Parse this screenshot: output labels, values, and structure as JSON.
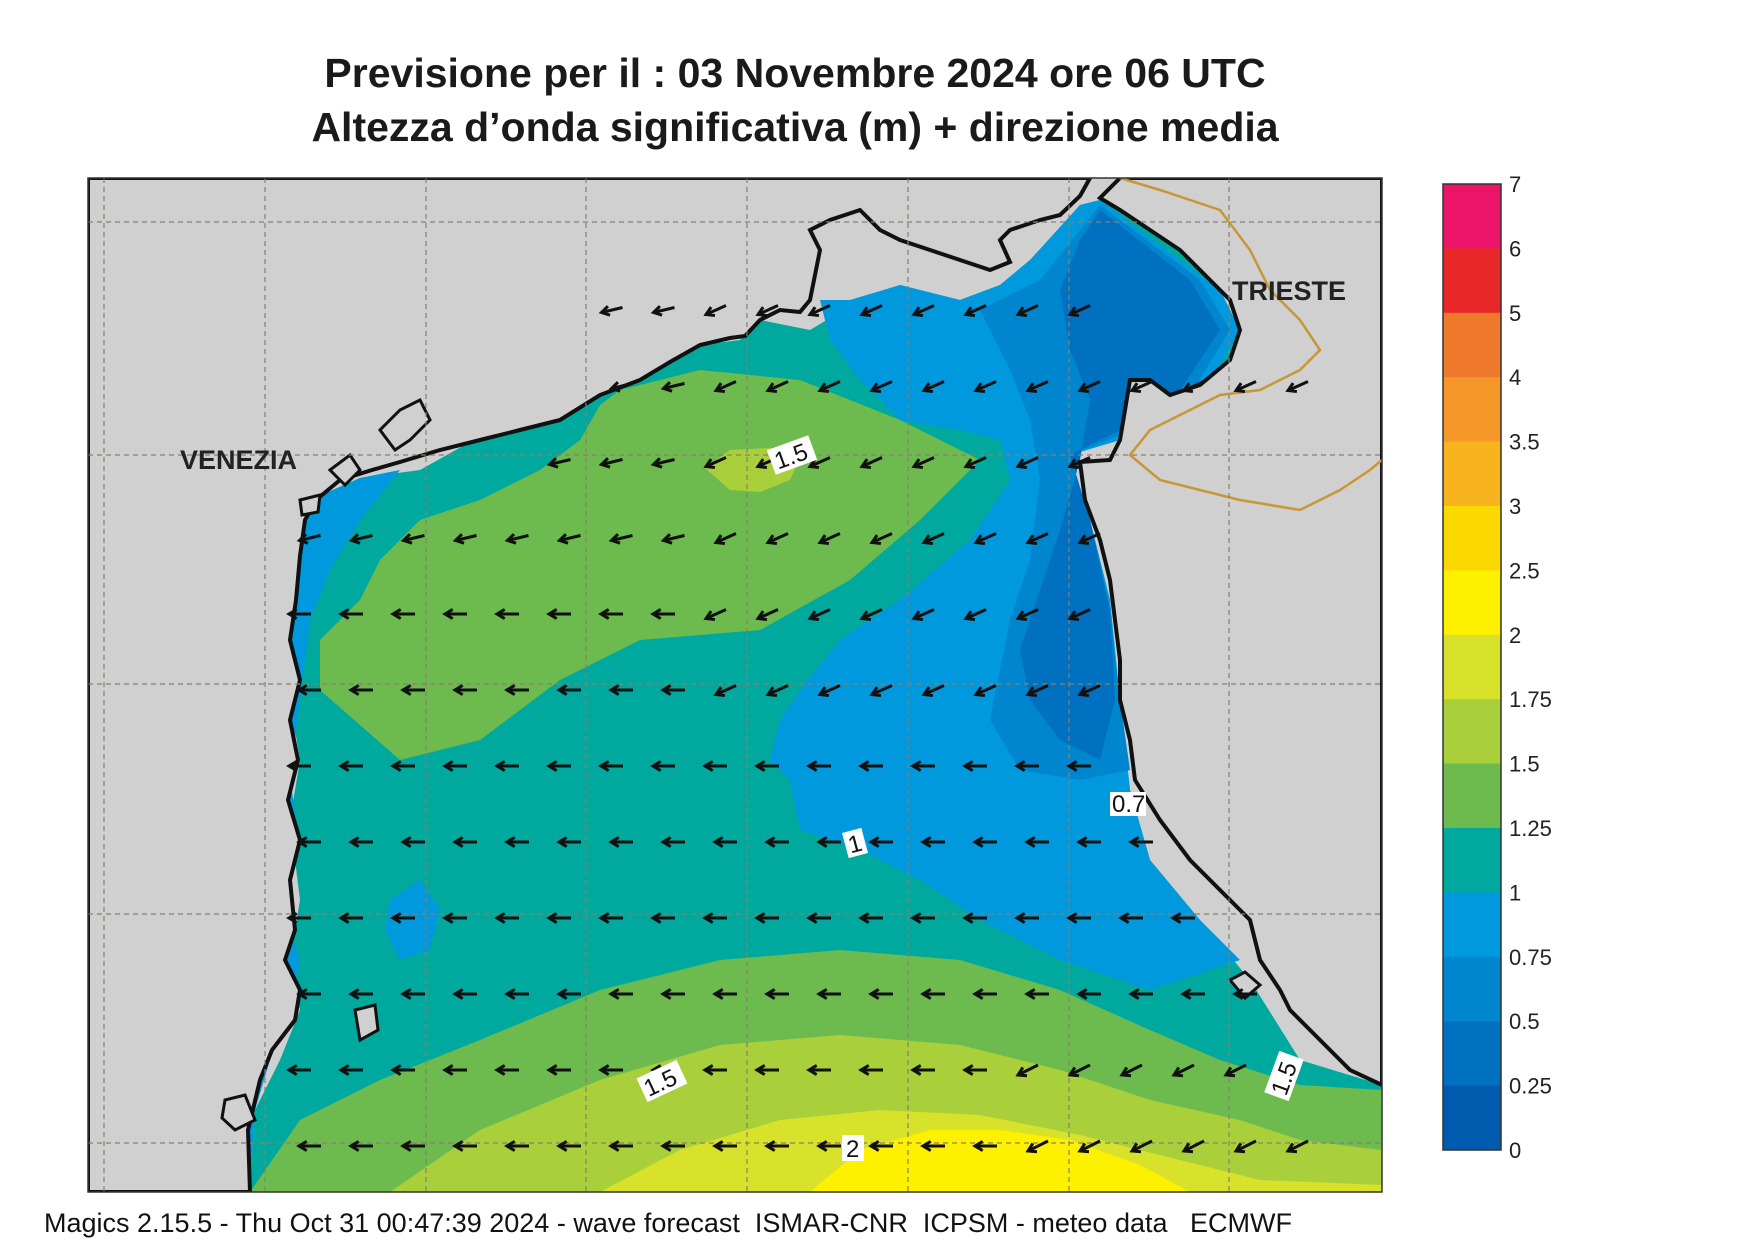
{
  "header": {
    "title_line1": "Previsione per il  :  03 Novembre  2024   ore 06 UTC",
    "title_line2": "Altezza d’onda significativa (m) + direzione media"
  },
  "map_labels": {
    "city_west": "VENEZIA",
    "city_east": "TRIESTE",
    "contour_labels": [
      "1.5",
      "1",
      "0.7",
      "1.5",
      "2",
      "1.5"
    ]
  },
  "legend": {
    "ticks": [
      "7",
      "6",
      "5",
      "4",
      "3.5",
      "3",
      "2.5",
      "2",
      "1.75",
      "1.5",
      "1.25",
      "1",
      "0.75",
      "0.5",
      "0.25",
      "0"
    ],
    "colors": [
      "#ec1468",
      "#e82828",
      "#f07a2c",
      "#f59628",
      "#f8b41c",
      "#fbd800",
      "#fdf100",
      "#d9e22a",
      "#a9cf3b",
      "#6dbb4f",
      "#00a99d",
      "#0099dd",
      "#0086cf",
      "#0070c0",
      "#005aad"
    ]
  },
  "colors": {
    "land": "#d0d0d0",
    "coast": "#111111",
    "border": "#c89634",
    "grid": "#8c7e6c"
  },
  "footer": {
    "text": "Magics 2.15.5 - Thu Oct 31 00:47:39 2024 - wave forecast  ISMAR-CNR  ICPSM - meteo data   ECMWF"
  }
}
